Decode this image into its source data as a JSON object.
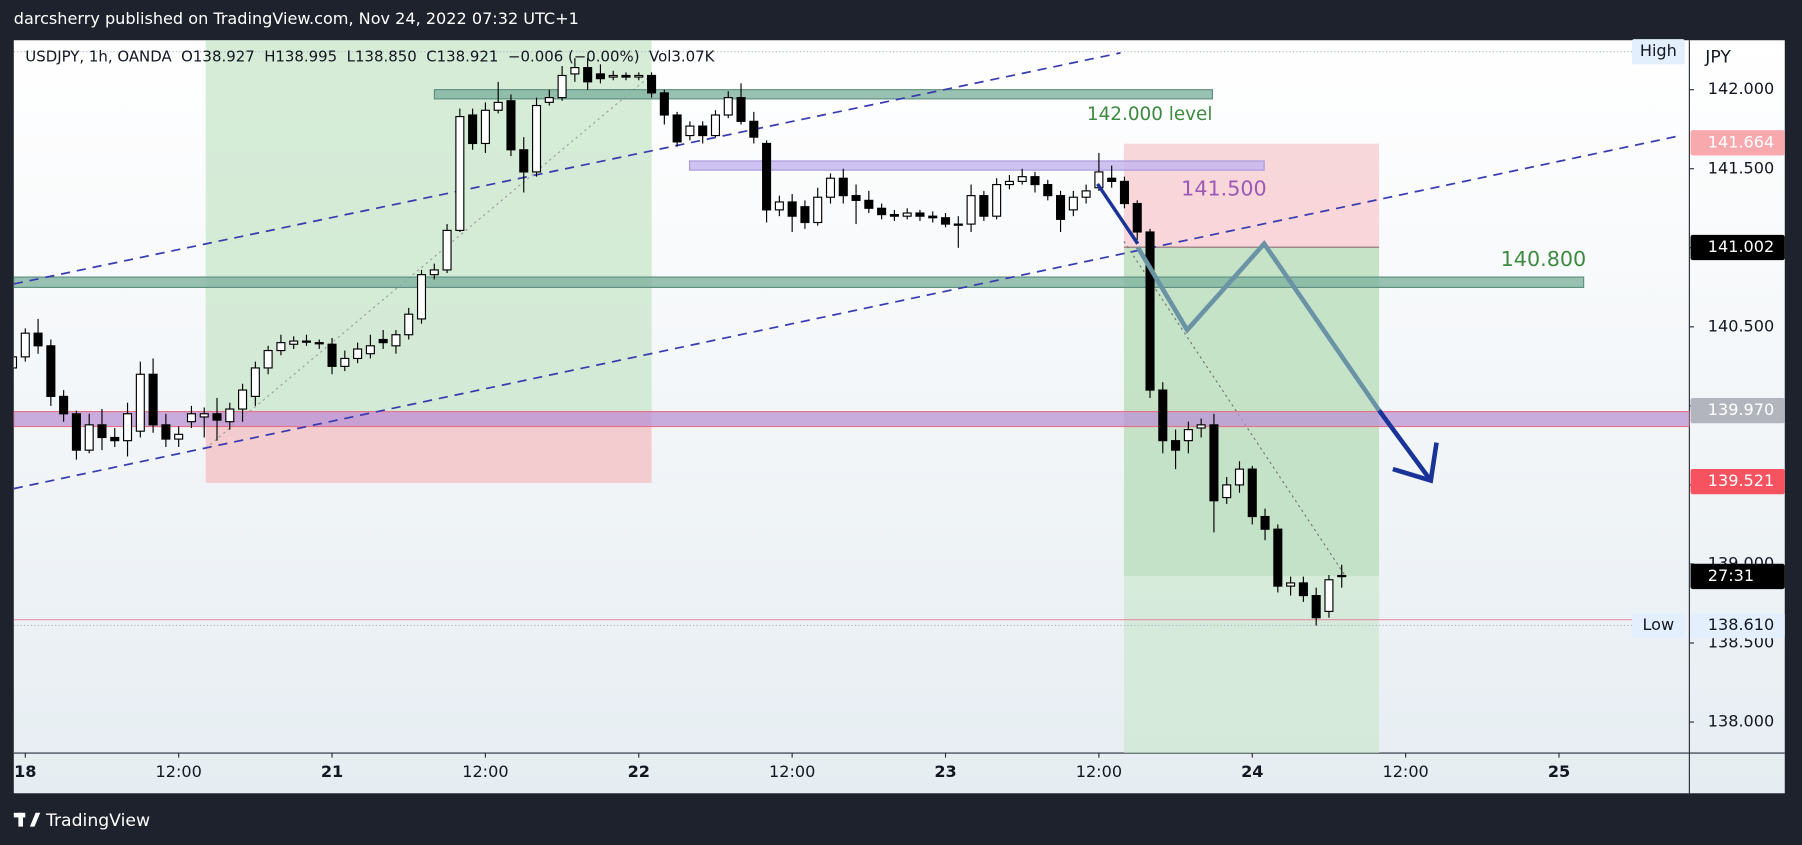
{
  "header": {
    "text": "darcsherry published on TradingView.com, Nov 24, 2022 07:32 UTC+1"
  },
  "footer": {
    "logo_text": "TradingView"
  },
  "chart_data": {
    "type": "candlestick",
    "legend_text": "USDJPY, 1h, OANDA  O138.927  H138.995  L138.850  C138.921  −0.006 (−0.00%)  Vol3.07K",
    "currency": "JPY",
    "x": [
      -1,
      0,
      1,
      2,
      3,
      4,
      5,
      6,
      7,
      8,
      9,
      10,
      11,
      12,
      13,
      14,
      15,
      16,
      17,
      18,
      19,
      20,
      21,
      22,
      23,
      24,
      25,
      26,
      27,
      28,
      29,
      30,
      31,
      32,
      33,
      34,
      35,
      36,
      37,
      38,
      39,
      40,
      41,
      42,
      43,
      44,
      45,
      46,
      47,
      48,
      49,
      50,
      51,
      52,
      53,
      54,
      55,
      56,
      57,
      58,
      59,
      60,
      61,
      62,
      63,
      64,
      65,
      66,
      67,
      68,
      69,
      70,
      71,
      72,
      73,
      74,
      75,
      76,
      77,
      78,
      79,
      80,
      81,
      82,
      83,
      84,
      85,
      86,
      87,
      88,
      89,
      90,
      91,
      92,
      93,
      94,
      95,
      96,
      97,
      98,
      99,
      100,
      101,
      102,
      103
    ],
    "open": [
      140.24,
      140.31,
      140.46,
      140.38,
      140.06,
      139.95,
      139.72,
      139.88,
      139.8,
      139.78,
      139.84,
      140.2,
      139.88,
      139.79,
      139.9,
      139.93,
      139.95,
      139.9,
      139.98,
      140.06,
      140.24,
      140.35,
      140.39,
      140.41,
      140.4,
      140.39,
      140.25,
      140.3,
      140.33,
      140.42,
      140.38,
      140.45,
      140.55,
      140.83,
      140.86,
      141.11,
      141.84,
      141.66,
      141.87,
      141.93,
      141.62,
      141.48,
      141.92,
      141.95,
      142.1,
      142.14,
      142.1,
      142.08,
      142.09,
      142.08,
      142.09,
      141.98,
      141.84,
      141.71,
      141.77,
      141.71,
      141.84,
      141.95,
      141.8,
      141.66,
      141.24,
      141.29,
      141.26,
      141.16,
      141.32,
      141.44,
      141.33,
      141.3,
      141.25,
      141.21,
      141.2,
      141.22,
      141.2,
      141.19,
      141.15,
      141.15,
      141.33,
      141.2,
      141.4,
      141.42,
      141.45,
      141.4,
      141.33,
      141.24,
      141.32,
      141.38,
      141.44,
      141.42,
      141.28,
      141.1,
      140.1,
      139.78,
      139.78,
      139.86,
      139.88,
      139.42,
      139.5,
      139.6,
      139.3,
      139.22,
      138.86,
      138.88,
      138.8,
      138.7,
      138.927
    ],
    "high": [
      140.38,
      140.49,
      140.55,
      140.42,
      140.1,
      139.97,
      139.95,
      139.98,
      139.86,
      140.02,
      140.28,
      140.3,
      139.95,
      139.87,
      140.0,
      139.99,
      140.05,
      140.02,
      140.14,
      140.28,
      140.38,
      140.45,
      140.44,
      140.45,
      140.42,
      140.43,
      140.35,
      140.4,
      140.45,
      140.48,
      140.48,
      140.62,
      140.86,
      140.9,
      141.15,
      141.88,
      141.88,
      141.92,
      142.05,
      141.97,
      141.7,
      141.95,
      142.0,
      142.15,
      142.2,
      142.2,
      142.16,
      142.12,
      142.11,
      142.11,
      142.11,
      142.0,
      141.86,
      141.8,
      141.8,
      141.87,
      141.99,
      142.04,
      141.86,
      141.68,
      141.33,
      141.34,
      141.3,
      141.38,
      141.47,
      141.5,
      141.4,
      141.36,
      141.28,
      141.24,
      141.25,
      141.24,
      141.23,
      141.22,
      141.2,
      141.4,
      141.36,
      141.44,
      141.46,
      141.5,
      141.48,
      141.43,
      141.36,
      141.36,
      141.4,
      141.6,
      141.52,
      141.45,
      141.3,
      141.12,
      140.15,
      139.85,
      139.9,
      139.92,
      139.95,
      139.55,
      139.65,
      139.62,
      139.35,
      139.25,
      138.92,
      138.92,
      138.85,
      138.93,
      138.995
    ],
    "low": [
      140.2,
      140.28,
      140.33,
      140.0,
      139.9,
      139.66,
      139.7,
      139.72,
      139.74,
      139.68,
      139.8,
      139.83,
      139.74,
      139.74,
      139.86,
      139.8,
      139.78,
      139.85,
      139.9,
      140.0,
      140.2,
      140.32,
      140.36,
      140.38,
      140.36,
      140.2,
      140.22,
      140.27,
      140.3,
      140.36,
      140.33,
      140.42,
      140.52,
      140.8,
      140.84,
      141.1,
      141.62,
      141.6,
      141.85,
      141.58,
      141.35,
      141.45,
      141.9,
      141.93,
      142.05,
      142.0,
      142.04,
      142.06,
      142.06,
      142.06,
      141.95,
      141.78,
      141.64,
      141.68,
      141.66,
      141.7,
      141.82,
      141.78,
      141.66,
      141.16,
      141.2,
      141.1,
      141.12,
      141.14,
      141.28,
      141.28,
      141.15,
      141.22,
      141.18,
      141.17,
      141.18,
      141.17,
      141.16,
      141.13,
      141.0,
      141.1,
      141.17,
      141.18,
      141.37,
      141.4,
      141.35,
      141.3,
      141.1,
      141.2,
      141.28,
      141.36,
      141.38,
      141.25,
      141.05,
      140.05,
      139.7,
      139.6,
      139.7,
      139.8,
      139.2,
      139.38,
      139.45,
      139.25,
      139.15,
      138.82,
      138.8,
      138.76,
      138.61,
      138.66,
      138.85
    ],
    "close": [
      140.31,
      140.46,
      140.38,
      140.06,
      139.95,
      139.72,
      139.88,
      139.8,
      139.78,
      139.95,
      140.2,
      139.88,
      139.79,
      139.82,
      139.95,
      139.95,
      139.91,
      139.98,
      140.1,
      140.24,
      140.35,
      140.4,
      140.41,
      140.41,
      140.4,
      140.25,
      140.3,
      140.36,
      140.38,
      140.4,
      140.45,
      140.58,
      140.83,
      140.86,
      141.11,
      141.83,
      141.66,
      141.87,
      141.92,
      141.62,
      141.48,
      141.9,
      141.95,
      142.09,
      142.14,
      142.05,
      142.07,
      142.09,
      142.08,
      142.09,
      141.98,
      141.84,
      141.67,
      141.77,
      141.71,
      141.84,
      141.95,
      141.8,
      141.7,
      141.24,
      141.29,
      141.2,
      141.16,
      141.32,
      141.44,
      141.33,
      141.3,
      141.25,
      141.21,
      141.2,
      141.22,
      141.2,
      141.19,
      141.15,
      141.15,
      141.33,
      141.2,
      141.4,
      141.42,
      141.45,
      141.4,
      141.33,
      141.18,
      141.32,
      141.36,
      141.48,
      141.42,
      141.28,
      141.1,
      140.1,
      139.78,
      139.72,
      139.85,
      139.88,
      139.4,
      139.5,
      139.6,
      139.3,
      139.22,
      138.86,
      138.88,
      138.8,
      138.66,
      138.9,
      138.921
    ],
    "up_color": "#ffffff",
    "down_color": "#000000",
    "xlim": [
      -0.9,
      130.2
    ],
    "xticks": [
      {
        "value": 0,
        "label": "18"
      },
      {
        "value": 12,
        "label": "12:00"
      },
      {
        "value": 24,
        "label": "21"
      },
      {
        "value": 36,
        "label": "12:00"
      },
      {
        "value": 48,
        "label": "22"
      },
      {
        "value": 60,
        "label": "12:00"
      },
      {
        "value": 72,
        "label": "23"
      },
      {
        "value": 84,
        "label": "12:00"
      },
      {
        "value": 96,
        "label": "24"
      },
      {
        "value": 108,
        "label": "12:00"
      },
      {
        "value": 120,
        "label": "25"
      }
    ],
    "ylim": [
      137.804,
      142.313
    ],
    "yticks": [
      {
        "value": 138,
        "label": "138.000"
      },
      {
        "value": 138.5,
        "label": "138.500"
      },
      {
        "value": 139,
        "label": "139.000"
      },
      {
        "value": 139.5,
        "label": "139.500"
      },
      {
        "value": 140,
        "label": "140.000"
      },
      {
        "value": 140.5,
        "label": "140.500"
      },
      {
        "value": 141,
        "label": "141.000"
      },
      {
        "value": 141.5,
        "label": "141.500"
      },
      {
        "value": 142,
        "label": "142.000"
      }
    ],
    "annotations": [
      "142.000 level",
      "141.500",
      "140.800"
    ],
    "price_tags": [
      {
        "value": 141.664,
        "label": "141.664",
        "color": "#f7a9ae",
        "text_color": "#ffffff"
      },
      {
        "value": 141.002,
        "label": "141.002",
        "color": "#000000",
        "text_color": "#ffffff"
      },
      {
        "value": 139.97,
        "label": "139.970",
        "color": "#b2b5be",
        "text_color": "#ffffff"
      },
      {
        "value": 139.521,
        "label": "139.521",
        "color": "#f7525f",
        "text_color": "#ffffff"
      },
      {
        "value": 138.61,
        "label": "138.610",
        "color": "#e3effd",
        "text_color": "#131722"
      }
    ],
    "countdown": "27:31",
    "high_label": "High",
    "low_label": "Low"
  }
}
